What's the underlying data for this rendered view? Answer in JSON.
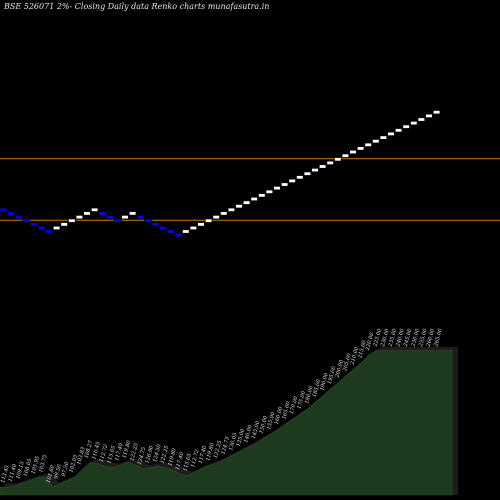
{
  "title": "BSE 526071 2%-  Closing Daily data  Renko  charts munafasutra.in",
  "colors": {
    "background": "#000000",
    "up_brick": "#ffffff",
    "down_brick": "#0000ff",
    "brick_outline": "#000000",
    "level_line": "#c97a12",
    "volume_fill": "#1e3a1e",
    "volume_shadow": "#1d1d1d",
    "label_text": "#e6e6e6"
  },
  "chart_data": [
    {
      "type": "renko",
      "title": "BSE 526071 2%-  Closing Daily data  Renko  charts munafasutra.in",
      "brick_size_percent": 2,
      "horizontal_levels": [
        274.5,
        194.6
      ],
      "bricks": [
        {
          "direction": "down",
          "low": 204.2,
          "high": 208.4
        },
        {
          "direction": "down",
          "low": 200.1,
          "high": 204.2
        },
        {
          "direction": "down",
          "low": 196.1,
          "high": 200.1
        },
        {
          "direction": "down",
          "low": 192.2,
          "high": 196.1
        },
        {
          "direction": "down",
          "low": 188.3,
          "high": 192.2
        },
        {
          "direction": "down",
          "low": 184.6,
          "high": 188.3
        },
        {
          "direction": "down",
          "low": 180.9,
          "high": 184.6
        },
        {
          "direction": "up",
          "low": 184.6,
          "high": 188.3
        },
        {
          "direction": "up",
          "low": 188.3,
          "high": 192.2
        },
        {
          "direction": "up",
          "low": 192.2,
          "high": 196.1
        },
        {
          "direction": "up",
          "low": 196.1,
          "high": 200.1
        },
        {
          "direction": "up",
          "low": 200.1,
          "high": 204.2
        },
        {
          "direction": "up",
          "low": 204.2,
          "high": 208.4
        },
        {
          "direction": "down",
          "low": 200.1,
          "high": 204.2
        },
        {
          "direction": "down",
          "low": 196.1,
          "high": 200.1
        },
        {
          "direction": "down",
          "low": 192.2,
          "high": 196.1
        },
        {
          "direction": "up",
          "low": 196.1,
          "high": 200.1
        },
        {
          "direction": "up",
          "low": 200.1,
          "high": 204.2
        },
        {
          "direction": "down",
          "low": 196.1,
          "high": 200.1
        },
        {
          "direction": "down",
          "low": 192.2,
          "high": 196.1
        },
        {
          "direction": "down",
          "low": 188.3,
          "high": 192.2
        },
        {
          "direction": "down",
          "low": 184.6,
          "high": 188.3
        },
        {
          "direction": "down",
          "low": 180.9,
          "high": 184.6
        },
        {
          "direction": "down",
          "low": 177.3,
          "high": 180.9
        },
        {
          "direction": "up",
          "low": 180.9,
          "high": 184.6
        },
        {
          "direction": "up",
          "low": 184.6,
          "high": 188.3
        },
        {
          "direction": "up",
          "low": 188.3,
          "high": 192.2
        },
        {
          "direction": "up",
          "low": 192.2,
          "high": 196.1
        },
        {
          "direction": "up",
          "low": 196.1,
          "high": 200.1
        },
        {
          "direction": "up",
          "low": 200.1,
          "high": 204.2
        },
        {
          "direction": "up",
          "low": 204.2,
          "high": 208.4
        },
        {
          "direction": "up",
          "low": 208.4,
          "high": 212.6
        },
        {
          "direction": "up",
          "low": 212.6,
          "high": 217.0
        },
        {
          "direction": "up",
          "low": 217.0,
          "high": 221.4
        },
        {
          "direction": "up",
          "low": 221.4,
          "high": 225.9
        },
        {
          "direction": "up",
          "low": 225.9,
          "high": 230.5
        },
        {
          "direction": "up",
          "low": 230.5,
          "high": 235.2
        },
        {
          "direction": "up",
          "low": 235.2,
          "high": 240.0
        },
        {
          "direction": "up",
          "low": 240.0,
          "high": 244.9
        },
        {
          "direction": "up",
          "low": 244.9,
          "high": 249.9
        },
        {
          "direction": "up",
          "low": 249.9,
          "high": 255.0
        },
        {
          "direction": "up",
          "low": 255.0,
          "high": 260.2
        },
        {
          "direction": "up",
          "low": 260.2,
          "high": 265.5
        },
        {
          "direction": "up",
          "low": 265.5,
          "high": 270.9
        },
        {
          "direction": "up",
          "low": 270.9,
          "high": 276.4
        },
        {
          "direction": "up",
          "low": 276.4,
          "high": 282.0
        },
        {
          "direction": "up",
          "low": 282.0,
          "high": 287.8
        },
        {
          "direction": "up",
          "low": 287.8,
          "high": 293.7
        },
        {
          "direction": "up",
          "low": 293.7,
          "high": 299.7
        },
        {
          "direction": "up",
          "low": 299.7,
          "high": 305.8
        },
        {
          "direction": "up",
          "low": 305.8,
          "high": 312.0
        },
        {
          "direction": "up",
          "low": 312.0,
          "high": 318.4
        },
        {
          "direction": "up",
          "low": 318.4,
          "high": 324.9
        },
        {
          "direction": "up",
          "low": 324.9,
          "high": 331.5
        },
        {
          "direction": "up",
          "low": 331.5,
          "high": 338.3
        },
        {
          "direction": "up",
          "low": 338.3,
          "high": 345.2
        },
        {
          "direction": "up",
          "low": 345.2,
          "high": 352.2
        },
        {
          "direction": "up",
          "low": 352.2,
          "high": 359.4
        }
      ],
      "price_labels": [
        "113.45",
        "111.40",
        "109.15",
        "108.05",
        "105.95",
        "103.75",
        "101.60",
        "99.50",
        "97.50",
        "102.05",
        "103.83",
        "108.27",
        "110.45",
        "112.72",
        "115.05",
        "117.40",
        "119.80",
        "122.25",
        "124.75",
        "126.90",
        "124.50",
        "122.25",
        "119.80",
        "117.40",
        "115.05",
        "112.72",
        "117.40",
        "119.80",
        "122.25",
        "124.75",
        "130.05",
        "135.00",
        "140.00",
        "145.00",
        "150.00",
        "155.00",
        "160.00",
        "165.00",
        "170.00",
        "175.00",
        "180.00",
        "185.00",
        "190.00",
        "195.00",
        "200.00",
        "205.00",
        "210.00",
        "215.00",
        "220.00",
        "225.00",
        "230.00",
        "235.00",
        "240.00",
        "245.00",
        "250.00",
        "255.00",
        "260.00",
        "265.00"
      ],
      "volume": {
        "type": "area",
        "values": [
          3.0,
          3.0,
          3.5,
          4.5,
          5.5,
          6.5,
          7.0,
          3.0,
          4.5,
          5.5,
          7.0,
          10.0,
          12.5,
          12.0,
          11.0,
          10.5,
          11.5,
          12.5,
          11.5,
          10.0,
          10.5,
          11.0,
          10.5,
          9.5,
          8.0,
          7.5,
          9.0,
          10.5,
          11.5,
          12.5,
          14.0,
          15.5,
          17.0,
          18.5,
          20.0,
          22.0,
          23.5,
          25.5,
          27.5,
          29.5,
          31.5,
          33.5,
          36.0,
          38.5,
          41.0,
          43.5,
          46.0,
          48.5,
          51.0,
          54.0,
          55.5,
          55.5,
          55.5,
          55.5,
          55.5,
          55.5,
          55.5,
          55.5,
          55.5,
          55.5,
          55.5
        ],
        "ymax": 100
      }
    }
  ]
}
